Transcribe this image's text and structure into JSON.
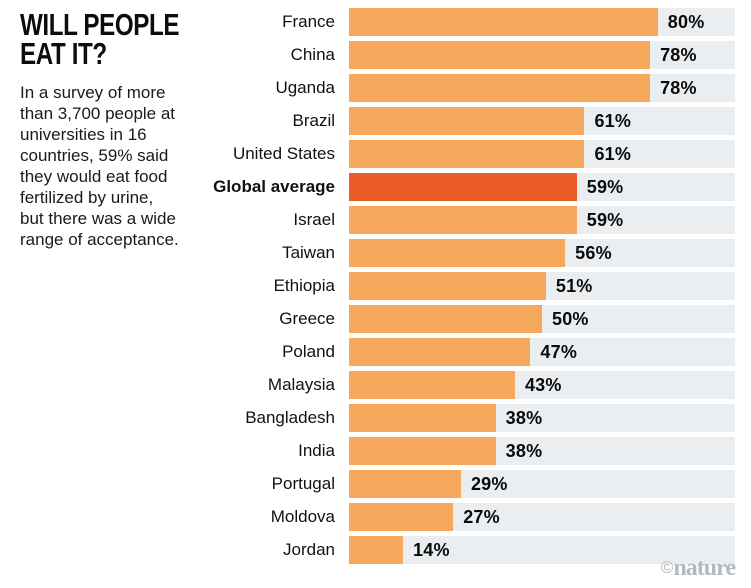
{
  "panel": {
    "title_line1": "WILL PEOPLE",
    "title_line2": "EAT IT?",
    "description": "In a survey of more\nthan 3,700 people at\nuniversities in 16\ncountries, 59% said\nthey would eat food\nfertilized by urine,\nbut there was a wide\nrange of acceptance."
  },
  "colors": {
    "bar": "#F6A95C",
    "highlight": "#EA5B26",
    "track": "#EBEEF1",
    "text": "#0b0b0b",
    "watermark": "#b5b9bc"
  },
  "watermark": {
    "copyright": "©",
    "brand": "nature"
  },
  "chart_data": {
    "type": "bar",
    "orientation": "horizontal",
    "title": "WILL PEOPLE EAT IT?",
    "unit": "%",
    "xlim": [
      0,
      100
    ],
    "grid": false,
    "legend": false,
    "highlight_category": "Global average",
    "categories": [
      "France",
      "China",
      "Uganda",
      "Brazil",
      "United States",
      "Global average",
      "Israel",
      "Taiwan",
      "Ethiopia",
      "Greece",
      "Poland",
      "Malaysia",
      "Bangladesh",
      "India",
      "Portugal",
      "Moldova",
      "Jordan"
    ],
    "values": [
      80,
      78,
      78,
      61,
      61,
      59,
      59,
      56,
      51,
      50,
      47,
      43,
      38,
      38,
      29,
      27,
      14
    ],
    "rows": [
      {
        "label": "France",
        "value": 80,
        "display": "80%",
        "highlighted": false
      },
      {
        "label": "China",
        "value": 78,
        "display": "78%",
        "highlighted": false
      },
      {
        "label": "Uganda",
        "value": 78,
        "display": "78%",
        "highlighted": false
      },
      {
        "label": "Brazil",
        "value": 61,
        "display": "61%",
        "highlighted": false
      },
      {
        "label": "United States",
        "value": 61,
        "display": "61%",
        "highlighted": false
      },
      {
        "label": "Global average",
        "value": 59,
        "display": "59%",
        "highlighted": true
      },
      {
        "label": "Israel",
        "value": 59,
        "display": "59%",
        "highlighted": false
      },
      {
        "label": "Taiwan",
        "value": 56,
        "display": "56%",
        "highlighted": false
      },
      {
        "label": "Ethiopia",
        "value": 51,
        "display": "51%",
        "highlighted": false
      },
      {
        "label": "Greece",
        "value": 50,
        "display": "50%",
        "highlighted": false
      },
      {
        "label": "Poland",
        "value": 47,
        "display": "47%",
        "highlighted": false
      },
      {
        "label": "Malaysia",
        "value": 43,
        "display": "43%",
        "highlighted": false
      },
      {
        "label": "Bangladesh",
        "value": 38,
        "display": "38%",
        "highlighted": false
      },
      {
        "label": "India",
        "value": 38,
        "display": "38%",
        "highlighted": false
      },
      {
        "label": "Portugal",
        "value": 29,
        "display": "29%",
        "highlighted": false
      },
      {
        "label": "Moldova",
        "value": 27,
        "display": "27%",
        "highlighted": false
      },
      {
        "label": "Jordan",
        "value": 14,
        "display": "14%",
        "highlighted": false
      }
    ]
  }
}
